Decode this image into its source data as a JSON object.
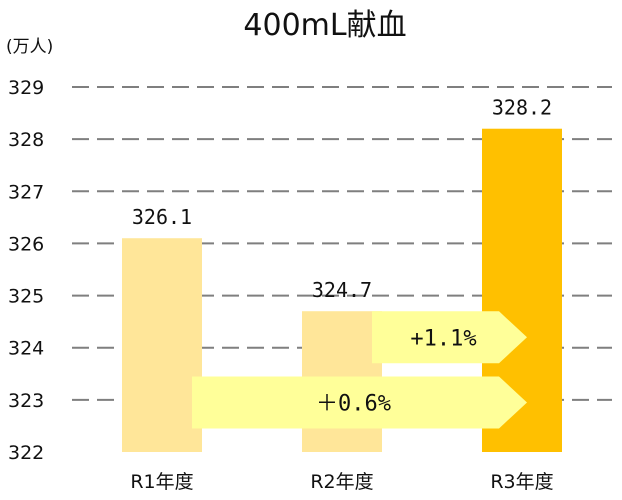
{
  "chart_data": {
    "type": "bar",
    "title": "400mL献血",
    "ylabel": "(万人)",
    "xlabel": "",
    "categories": [
      "R1年度",
      "R2年度",
      "R3年度"
    ],
    "values": [
      326.1,
      324.7,
      328.2
    ],
    "data_labels": [
      "326.1",
      "324.7",
      "328.2"
    ],
    "ylim": [
      322,
      329
    ],
    "yticks": [
      322,
      323,
      324,
      325,
      326,
      327,
      328,
      329
    ],
    "grid": true,
    "colors": [
      "#FFE699",
      "#FFE699",
      "#FFC000"
    ],
    "annotations": [
      {
        "text": "+1.1%",
        "from": "R2年度",
        "to": "R3年度",
        "level": 324.2
      },
      {
        "text": "＋0.6%",
        "from": "R1年度",
        "to": "R3年度",
        "level": 322.95
      }
    ],
    "annotation_color": "#FFFF99"
  }
}
